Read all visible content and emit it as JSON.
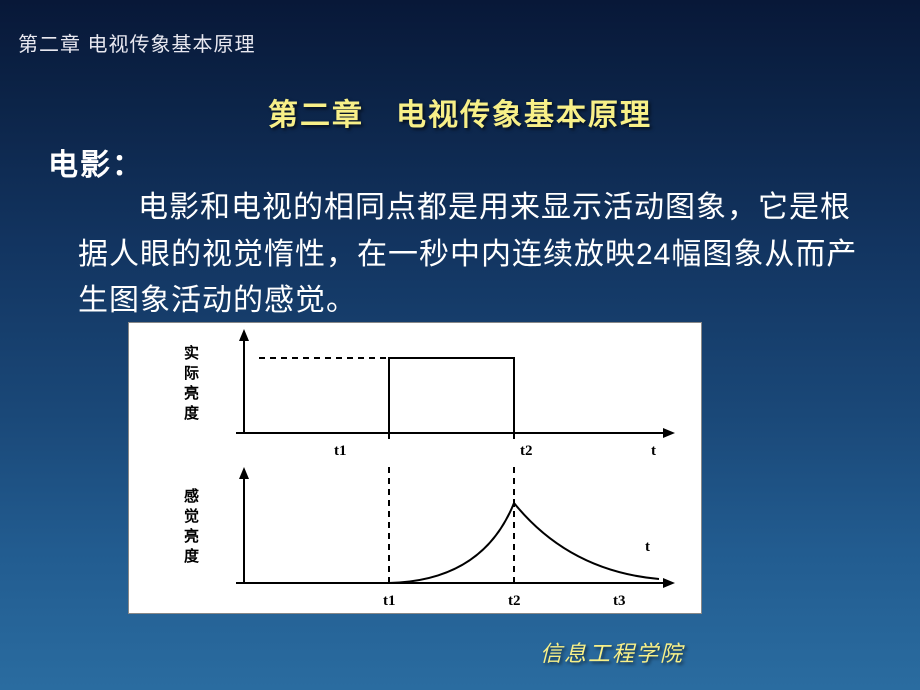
{
  "header": {
    "breadcrumb": "第二章 电视传象基本原理"
  },
  "title": {
    "chapter_title": "第二章　电视传象基本原理"
  },
  "content": {
    "section_label": "电影：",
    "body_text": "电影和电视的相同点都是用来显示活动图象，它是根据人眼的视觉惰性，在一秒中内连续放映24幅图象从而产生图象活动的感觉。"
  },
  "footer": {
    "organization": "信息工程学院"
  },
  "diagram": {
    "type": "line-chart-pair",
    "background_color": "#ffffff",
    "stroke_color": "#000000",
    "stroke_width": 2,
    "top_chart": {
      "y_axis_label": "实际亮度",
      "x_axis_label": "t",
      "x_ticks": [
        "t1",
        "t2"
      ],
      "y_origin": 110,
      "x_origin": 115,
      "x_end": 540,
      "arrow_top_y": 12,
      "plateau_y": 35,
      "dash_start_x": 130,
      "rect_start_x": 260,
      "rect_end_x": 385
    },
    "bottom_chart": {
      "y_axis_label": "感觉亮度",
      "x_axis_label": "t",
      "x_ticks": [
        "t1",
        "t2",
        "t3"
      ],
      "y_origin": 260,
      "x_origin": 115,
      "x_end": 540,
      "arrow_top_y": 150,
      "rect_start_x": 260,
      "peak_x": 385,
      "peak_y": 180,
      "tail_end_x": 530,
      "t3_x": 490
    },
    "label_fontsize": 15,
    "tick_fontsize": 15
  }
}
